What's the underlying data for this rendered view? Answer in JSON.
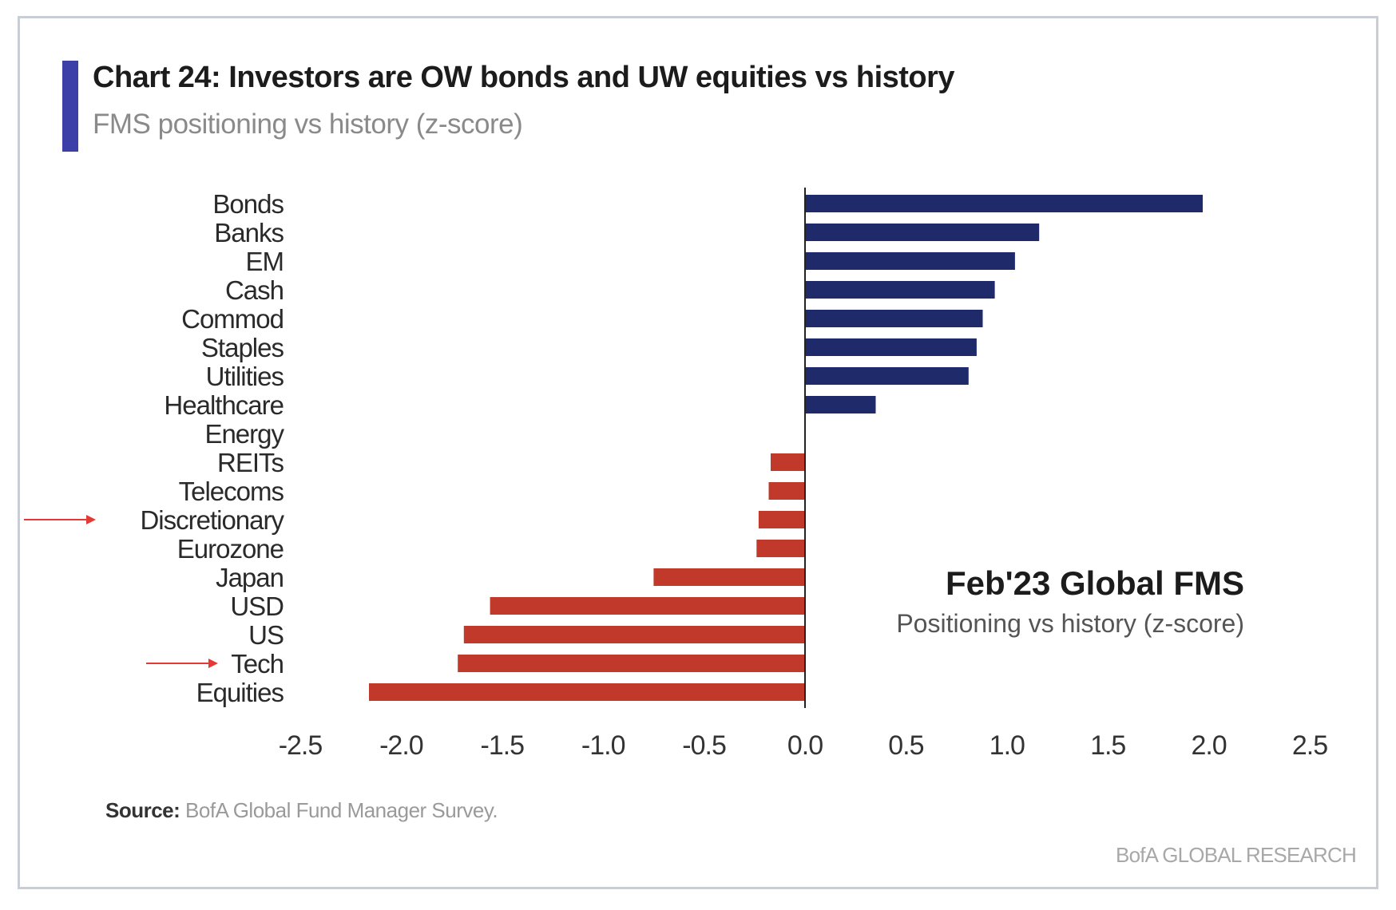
{
  "colors": {
    "accent": "#3c3fa8",
    "positive": "#1f2a6b",
    "negative": "#c0392b",
    "arrow": "#e53935"
  },
  "header": {
    "title": "Chart 24: Investors are OW bonds and UW equities vs history",
    "subtitle": "FMS positioning vs history (z-score)"
  },
  "footer": {
    "source_label": "Source:",
    "source_text": "BofA Global Fund Manager Survey.",
    "brand": "BofA GLOBAL RESEARCH"
  },
  "chart_data": {
    "type": "bar",
    "orientation": "horizontal",
    "categories": [
      "Bonds",
      "Banks",
      "EM",
      "Cash",
      "Commod",
      "Staples",
      "Utilities",
      "Healthcare",
      "Energy",
      "REITs",
      "Telecoms",
      "Discretionary",
      "Eurozone",
      "Japan",
      "USD",
      "US",
      "Tech",
      "Equities"
    ],
    "values": [
      1.97,
      1.16,
      1.04,
      0.94,
      0.88,
      0.85,
      0.81,
      0.35,
      0.0,
      -0.17,
      -0.18,
      -0.23,
      -0.24,
      -0.75,
      -1.56,
      -1.69,
      -1.72,
      -2.16
    ],
    "xlim": [
      -2.5,
      2.5
    ],
    "xticks": [
      "-2.5",
      "-2.0",
      "-1.5",
      "-1.0",
      "-0.5",
      "0.0",
      "0.5",
      "1.0",
      "1.5",
      "2.0",
      "2.5"
    ],
    "annotation_title": "Feb'23 Global FMS",
    "annotation_subtitle": "Positioning vs history (z-score)",
    "highlighted_categories": [
      "Discretionary",
      "Tech"
    ],
    "grid": false
  }
}
